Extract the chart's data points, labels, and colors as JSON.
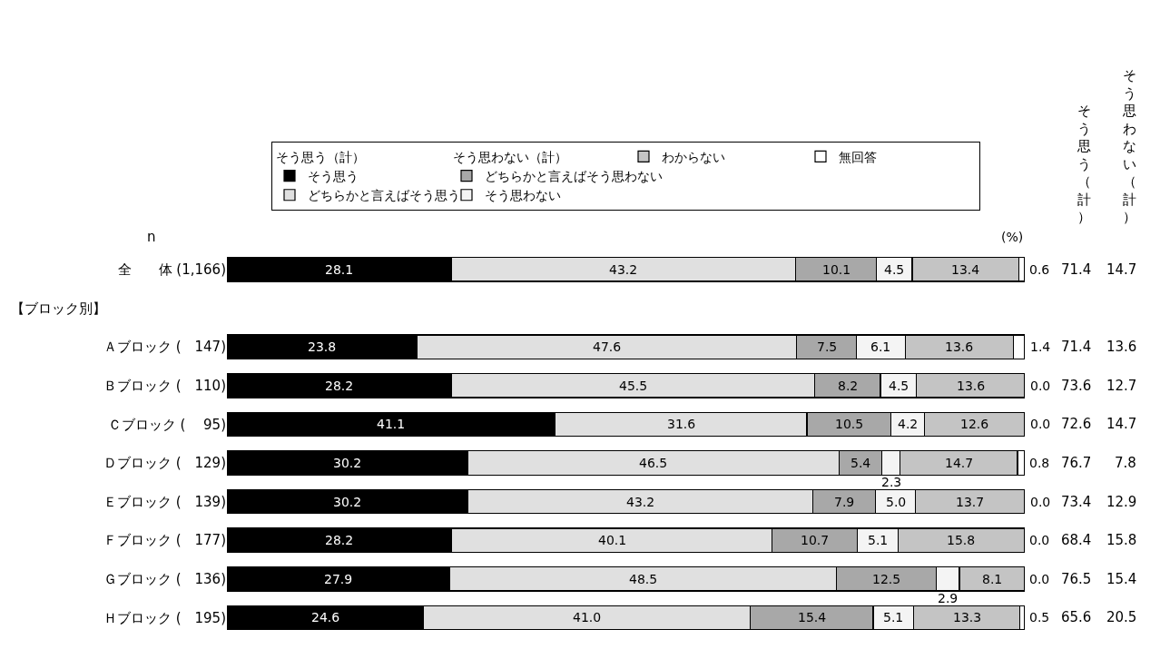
{
  "chart_data": {
    "type": "bar",
    "orientation": "horizontal",
    "stacked": true,
    "tick_labels": "y",
    "legend": "top",
    "xlim": [
      0,
      100
    ],
    "categories": [
      "全　　体 (1,166)",
      "Ａブロック (　147)",
      "Ｂブロック (　110)",
      "Ｃブロック (　 95)",
      "Ｄブロック (　129)",
      "Ｅブロック (　139)",
      "Ｆブロック (　177)",
      "Ｇブロック (　136)",
      "Ｈブロック (　195)"
    ],
    "series": [
      {
        "name": "そう思う",
        "color": "#000000",
        "values": [
          28.1,
          23.8,
          28.2,
          41.1,
          30.2,
          30.2,
          28.2,
          27.9,
          24.6
        ],
        "value_labels": [
          "28.1",
          "23.8",
          "28.2",
          "41.1",
          "30.2",
          "30.2",
          "28.2",
          "27.9",
          "24.6"
        ]
      },
      {
        "name": "どちらかと言えばそう思う",
        "color": "#e0e0e0",
        "values": [
          43.2,
          47.6,
          45.5,
          31.6,
          46.5,
          43.2,
          40.1,
          48.5,
          41.0
        ],
        "value_labels": [
          "43.2",
          "47.6",
          "45.5",
          "31.6",
          "46.5",
          "43.2",
          "40.1",
          "48.5",
          "41.0"
        ]
      },
      {
        "name": "どちらかと言えばそう思わない",
        "color": "#a8a8a8",
        "values": [
          10.1,
          7.5,
          8.2,
          10.5,
          5.4,
          7.9,
          10.7,
          12.5,
          15.4
        ],
        "value_labels": [
          "10.1",
          "7.5",
          "8.2",
          "10.5",
          "5.4",
          "7.9",
          "10.7",
          "12.5",
          "15.4"
        ]
      },
      {
        "name": "そう思わない",
        "color": "#f4f4f4",
        "values": [
          4.5,
          6.1,
          4.5,
          4.2,
          2.3,
          5.0,
          5.1,
          2.9,
          5.1
        ],
        "value_labels": [
          "4.5",
          "6.1",
          "4.5",
          "4.2",
          "2.3",
          "5.0",
          "5.1",
          "2.9",
          "5.1"
        ]
      },
      {
        "name": "わからない",
        "color": "#c4c4c4",
        "values": [
          13.4,
          13.6,
          13.6,
          12.6,
          14.7,
          13.7,
          15.8,
          8.1,
          13.3
        ],
        "value_labels": [
          "13.4",
          "13.6",
          "13.6",
          "12.6",
          "14.7",
          "13.7",
          "15.8",
          "8.1",
          "13.3"
        ]
      },
      {
        "name": "無回答",
        "color": "#ffffff",
        "values": [
          0.6,
          1.4,
          0.0,
          0.0,
          0.8,
          0.0,
          0.0,
          0.0,
          0.5
        ],
        "value_labels": [
          "0.6",
          "1.4",
          "0.0",
          "0.0",
          "0.8",
          "0.0",
          "0.0",
          "0.0",
          "0.5"
        ]
      }
    ],
    "annotations": [
      "そう思う（計）",
      "そう思わない（計）",
      "そう思う（計）",
      "そう思わない（計）",
      "n",
      "(%)",
      "【ブロック別】",
      "71.4",
      "14.7",
      "71.4",
      "13.6",
      "73.6",
      "12.7",
      "72.6",
      "14.7",
      "76.7",
      "7.8",
      "73.4",
      "12.9",
      "68.4",
      "15.8",
      "76.5",
      "15.4",
      "65.6",
      "20.5"
    ]
  }
}
